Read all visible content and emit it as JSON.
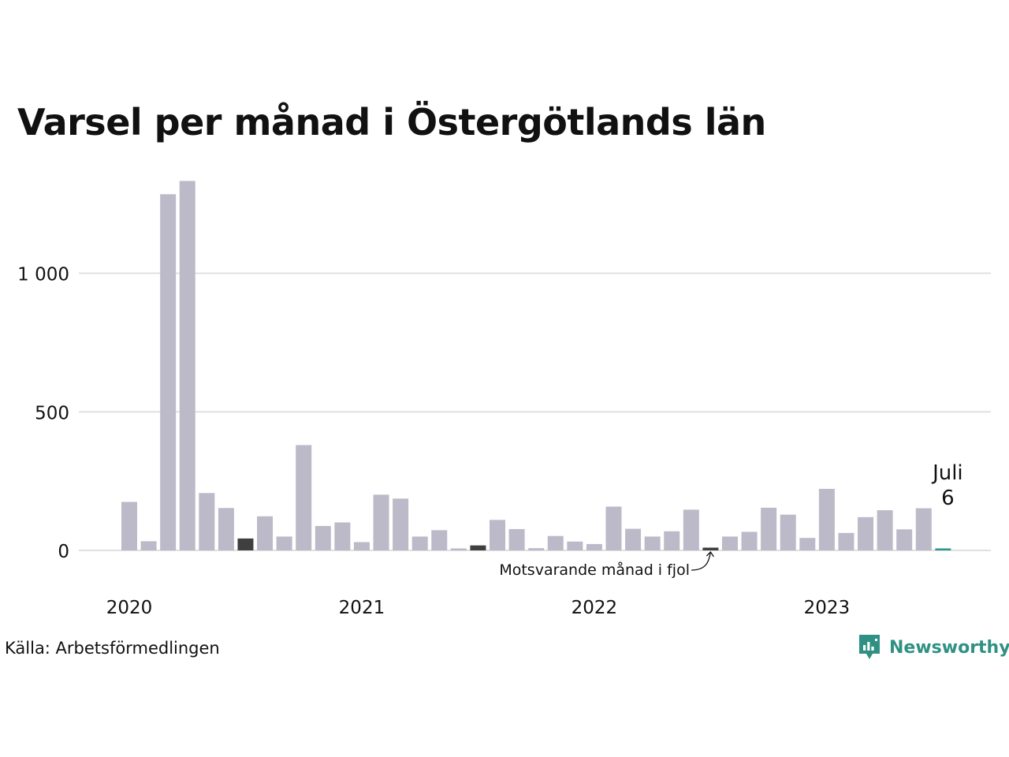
{
  "title": "Varsel per månad i Östergötlands län",
  "source": "Källa: Arbetsförmedlingen",
  "brand": {
    "name": "Newsworthy",
    "color": "#2f9183",
    "icon": "newsworthy-logo-icon"
  },
  "colors": {
    "bar": "#bcbac8",
    "same_month_last_year": "#3f3f3f",
    "current": "#2a978c",
    "grid": "#e0e0e0",
    "axis": "#e0e0e0"
  },
  "annotations": {
    "current_month": "Juli",
    "current_value": "6",
    "last_year_label": "Motsvarande månad i fjol"
  },
  "chart_data": {
    "type": "bar",
    "title": "Varsel per månad i Östergötlands län",
    "ylim": [
      0,
      1340
    ],
    "yticks": [
      0,
      500,
      1000
    ],
    "ytick_labels": [
      "0",
      "500",
      "1 000"
    ],
    "year_labels": [
      {
        "label": "2020",
        "index": 0
      },
      {
        "label": "2021",
        "index": 12
      },
      {
        "label": "2022",
        "index": 24
      },
      {
        "label": "2023",
        "index": 36
      }
    ],
    "grid": true,
    "categories": [
      "2020-01",
      "2020-02",
      "2020-03",
      "2020-04",
      "2020-05",
      "2020-06",
      "2020-07",
      "2020-08",
      "2020-09",
      "2020-10",
      "2020-11",
      "2020-12",
      "2021-01",
      "2021-02",
      "2021-03",
      "2021-04",
      "2021-05",
      "2021-06",
      "2021-07",
      "2021-08",
      "2021-09",
      "2021-10",
      "2021-11",
      "2021-12",
      "2022-01",
      "2022-02",
      "2022-03",
      "2022-04",
      "2022-05",
      "2022-06",
      "2022-07",
      "2022-08",
      "2022-09",
      "2022-10",
      "2022-11",
      "2022-12",
      "2023-01",
      "2023-02",
      "2023-03",
      "2023-04",
      "2023-05",
      "2023-06",
      "2023-07"
    ],
    "values": [
      175,
      33,
      1285,
      1333,
      207,
      153,
      43,
      123,
      50,
      380,
      88,
      101,
      30,
      201,
      187,
      50,
      73,
      5,
      18,
      110,
      77,
      8,
      52,
      32,
      23,
      158,
      78,
      50,
      69,
      147,
      10,
      50,
      67,
      154,
      129,
      45,
      222,
      63,
      120,
      145,
      76,
      152,
      6
    ],
    "highlights": {
      "same_month_last_year": [
        6,
        18,
        30
      ],
      "current": 42
    }
  }
}
